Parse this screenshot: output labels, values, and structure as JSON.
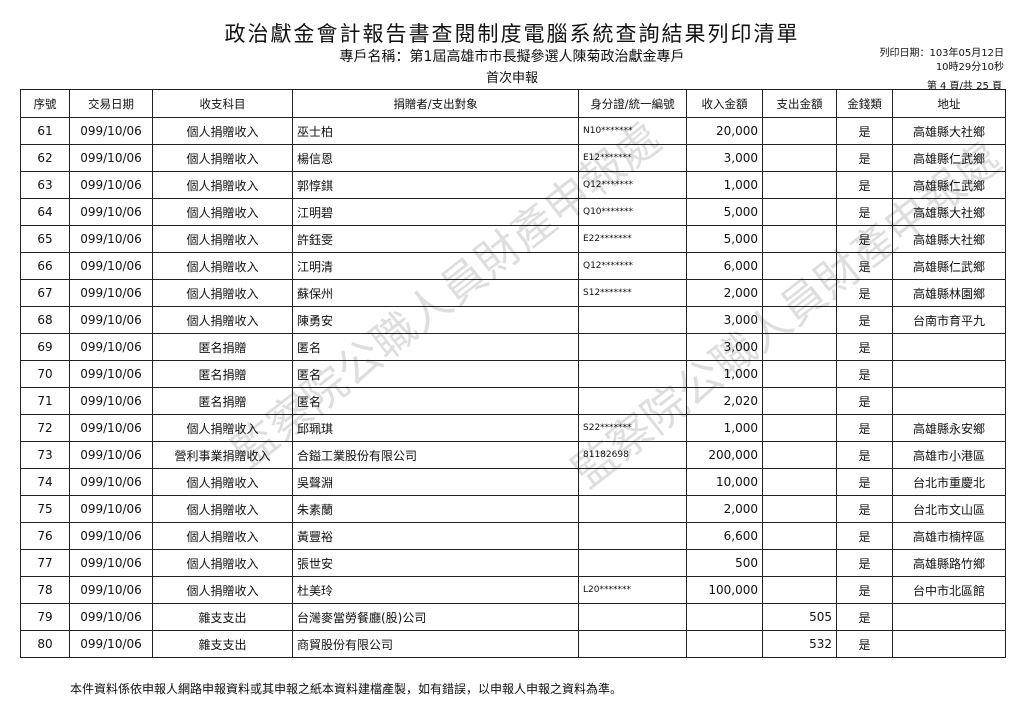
{
  "header": {
    "title": "政治獻金會計報告書查閱制度電腦系統查詢結果列印清單",
    "account": "專戶名稱：第1屆高雄市市長擬參選人陳菊政治獻金專戶",
    "filing": "首次申報",
    "print_date": "列印日期：103年05月12日",
    "print_time": "10時29分10秒",
    "page": "第 4 頁/共 25 頁"
  },
  "table": {
    "columns": [
      "序號",
      "交易日期",
      "收支科目",
      "捐贈者/支出對象",
      "身分證/統一編號",
      "收入金額",
      "支出金額",
      "金錢類",
      "地址"
    ],
    "rows": [
      [
        "61",
        "099/10/06",
        "個人捐贈收入",
        "巫士柏",
        "N10*******",
        "20,000",
        null,
        "是",
        "高雄縣大社鄉"
      ],
      [
        "62",
        "099/10/06",
        "個人捐贈收入",
        "楊信恩",
        "E12*******",
        "3,000",
        null,
        "是",
        "高雄縣仁武鄉"
      ],
      [
        "63",
        "099/10/06",
        "個人捐贈收入",
        "郭惇錤",
        "Q12*******",
        "1,000",
        null,
        "是",
        "高雄縣仁武鄉"
      ],
      [
        "64",
        "099/10/06",
        "個人捐贈收入",
        "江明碧",
        "Q10*******",
        "5,000",
        null,
        "是",
        "高雄縣大社鄉"
      ],
      [
        "65",
        "099/10/06",
        "個人捐贈收入",
        "許鈺雯",
        "E22*******",
        "5,000",
        null,
        "是",
        "高雄縣大社鄉"
      ],
      [
        "66",
        "099/10/06",
        "個人捐贈收入",
        "江明清",
        "Q12*******",
        "6,000",
        null,
        "是",
        "高雄縣仁武鄉"
      ],
      [
        "67",
        "099/10/06",
        "個人捐贈收入",
        "蘇保州",
        "S12*******",
        "2,000",
        null,
        "是",
        "高雄縣林園鄉"
      ],
      [
        "68",
        "099/10/06",
        "個人捐贈收入",
        "陳勇安",
        null,
        "3,000",
        null,
        "是",
        "台南市育平九"
      ],
      [
        "69",
        "099/10/06",
        "匿名捐贈",
        "匿名",
        null,
        "3,000",
        null,
        "是",
        null
      ],
      [
        "70",
        "099/10/06",
        "匿名捐贈",
        "匿名",
        null,
        "1,000",
        null,
        "是",
        null
      ],
      [
        "71",
        "099/10/06",
        "匿名捐贈",
        "匿名",
        null,
        "2,020",
        null,
        "是",
        null
      ],
      [
        "72",
        "099/10/06",
        "個人捐贈收入",
        "邱珮琪",
        "S22*******",
        "1,000",
        null,
        "是",
        "高雄縣永安鄉"
      ],
      [
        "73",
        "099/10/06",
        "營利事業捐贈收入",
        "合鎰工業股份有限公司",
        "81182698",
        "200,000",
        null,
        "是",
        "高雄市小港區"
      ],
      [
        "74",
        "099/10/06",
        "個人捐贈收入",
        "吳聲淵",
        null,
        "10,000",
        null,
        "是",
        "台北市重慶北"
      ],
      [
        "75",
        "099/10/06",
        "個人捐贈收入",
        "朱素蘭",
        null,
        "2,000",
        null,
        "是",
        "台北市文山區"
      ],
      [
        "76",
        "099/10/06",
        "個人捐贈收入",
        "黃豐裕",
        null,
        "6,600",
        null,
        "是",
        "高雄市楠梓區"
      ],
      [
        "77",
        "099/10/06",
        "個人捐贈收入",
        "張世安",
        null,
        "500",
        null,
        "是",
        "高雄縣路竹鄉"
      ],
      [
        "78",
        "099/10/06",
        "個人捐贈收入",
        "杜美玲",
        "L20*******",
        "100,000",
        null,
        "是",
        "台中市北區館"
      ],
      [
        "79",
        "099/10/06",
        "雜支支出",
        "台灣麥當勞餐廳(股)公司",
        null,
        null,
        "505",
        "是",
        null
      ],
      [
        "80",
        "099/10/06",
        "雜支支出",
        "商貿股份有限公司",
        null,
        null,
        "532",
        "是",
        null
      ]
    ]
  },
  "watermark": "監察院公職人員財產申報處",
  "footer": "本件資料係依申報人網路申報資料或其申報之紙本資料建檔產製，如有錯誤，以申報人申報之資料為準。"
}
